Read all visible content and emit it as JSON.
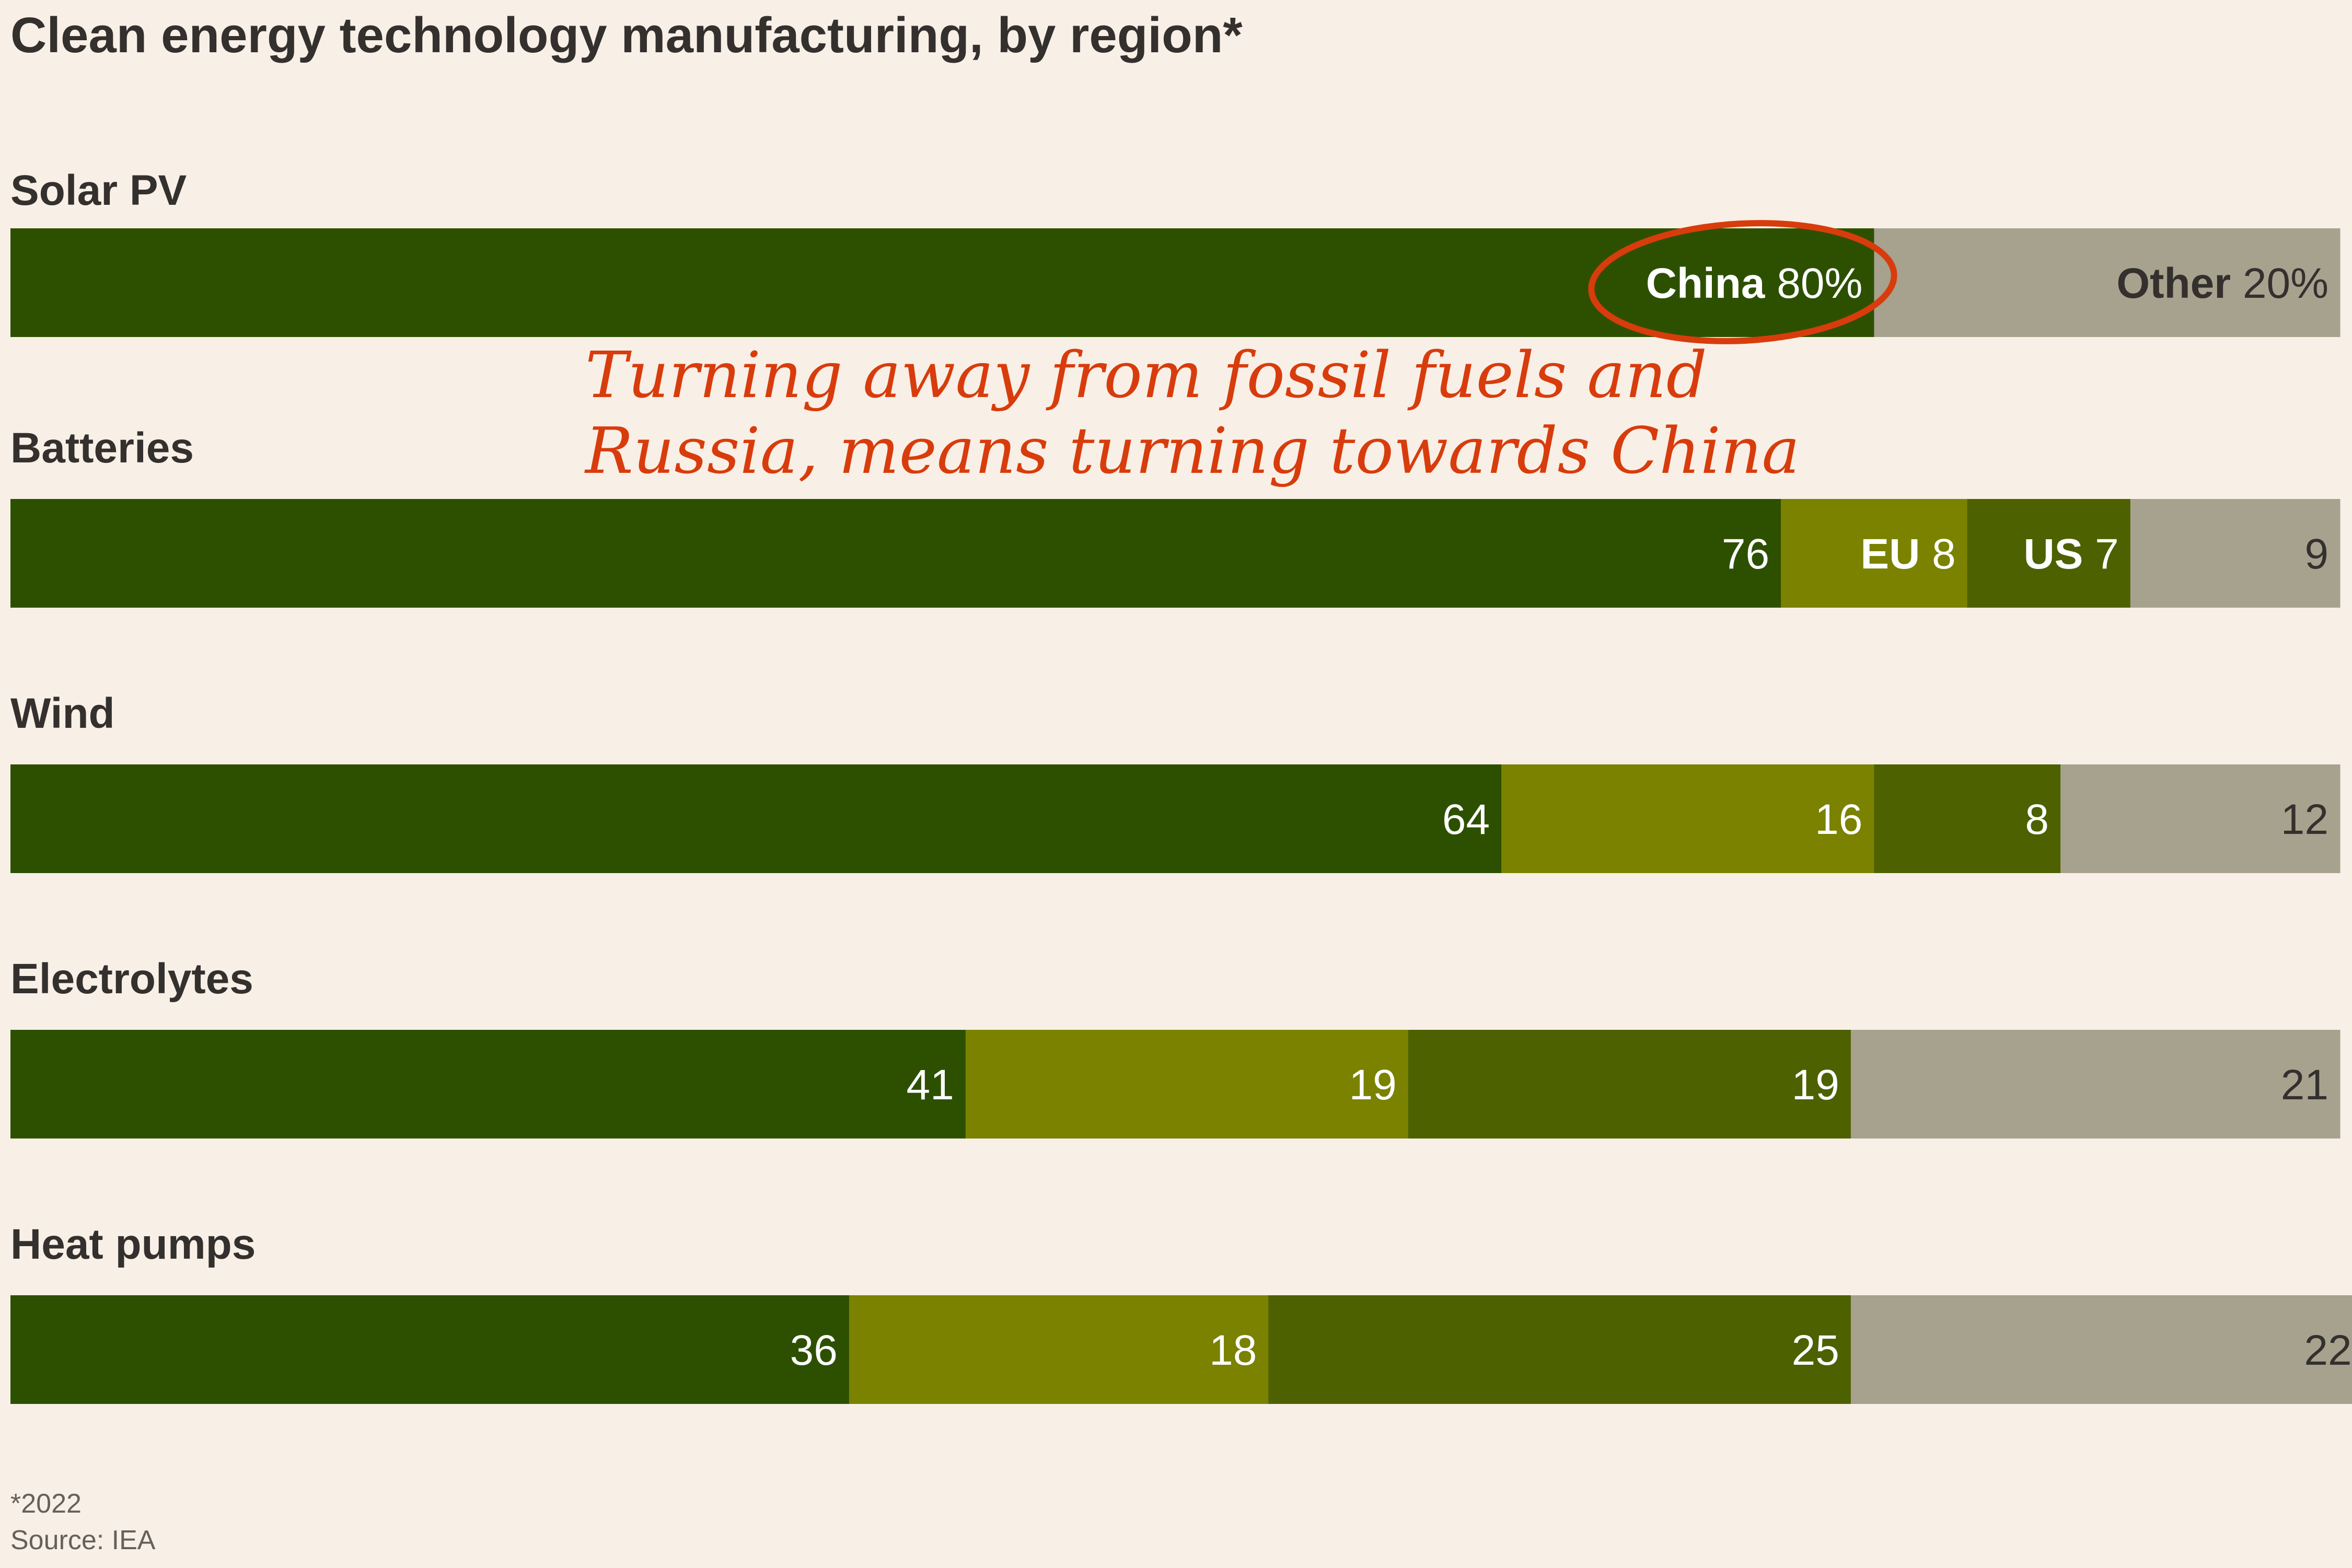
{
  "chart_data": {
    "type": "bar",
    "orientation": "horizontal",
    "stacked": true,
    "title": "Clean energy technology manufacturing, by region*",
    "categories": [
      "Solar PV",
      "Batteries",
      "Wind",
      "Electrolytes",
      "Heat pumps"
    ],
    "series": [
      {
        "name": "China",
        "color": "#2d5000",
        "values": [
          80,
          76,
          64,
          41,
          36
        ]
      },
      {
        "name": "EU",
        "color": "#7a8200",
        "values": [
          0,
          8,
          16,
          19,
          18
        ]
      },
      {
        "name": "US",
        "color": "#4d6100",
        "values": [
          0,
          7,
          8,
          19,
          25
        ]
      },
      {
        "name": "Other",
        "color": "#a6a28e",
        "values": [
          20,
          9,
          12,
          21,
          22
        ]
      }
    ],
    "value_labels": [
      [
        "80%",
        "",
        "",
        "20%"
      ],
      [
        "76",
        "8",
        "7",
        "9"
      ],
      [
        "64",
        "16",
        "8",
        "12"
      ],
      [
        "41",
        "19",
        "19",
        "21"
      ],
      [
        "36",
        "18",
        "25",
        "22"
      ]
    ],
    "inline_series_labels": [
      [
        "China",
        "",
        "",
        "Other"
      ],
      [
        "",
        "EU",
        "US",
        ""
      ],
      [
        "",
        "",
        "",
        ""
      ],
      [
        "",
        "",
        "",
        ""
      ],
      [
        "",
        "",
        "",
        ""
      ]
    ],
    "xlim": [
      0,
      100
    ],
    "annotation": {
      "lines": [
        "Turning away from fossil fuels and",
        "Russia, means turning towards China"
      ],
      "color": "#d83c0c",
      "highlight": "China 80%"
    },
    "footnote": "*2022",
    "source": "Source: IEA"
  }
}
